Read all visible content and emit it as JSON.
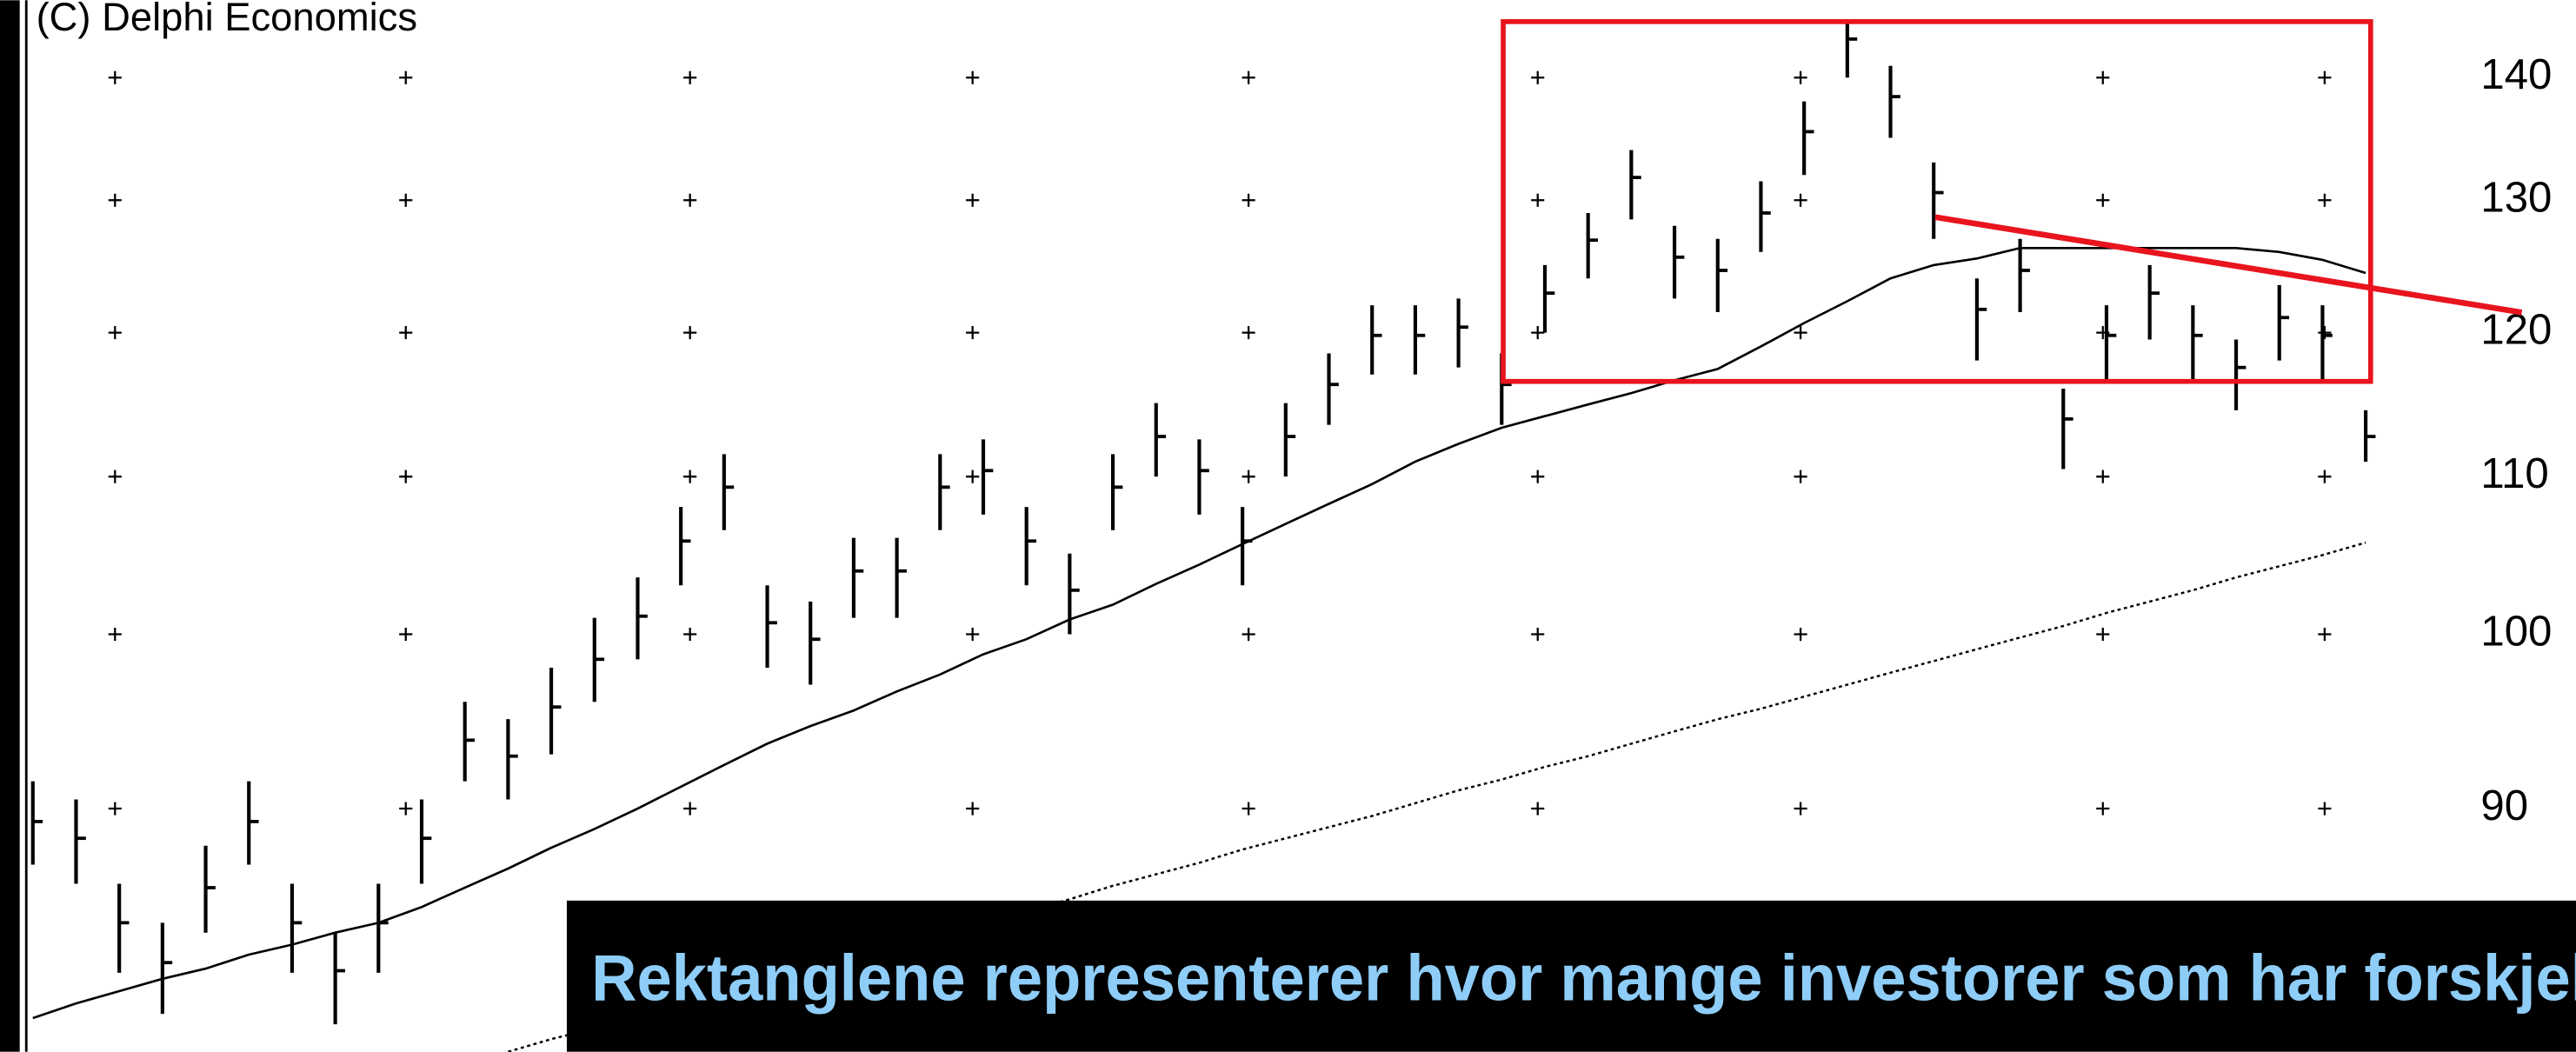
{
  "chart_data": {
    "type": "ohlc",
    "credit": "(C) Delphi Economics",
    "caption": "Rektanglene representerer hvor mange investorer som har forskjellig",
    "log_scale": true,
    "ylim": [
      77.7,
      146.7
    ],
    "yticks": [
      90,
      100,
      110,
      120,
      130,
      140
    ],
    "color": "#000000",
    "high": [
      91.5,
      90.5,
      86,
      84,
      88,
      91.5,
      86,
      83.5,
      86,
      90.5,
      96,
      95,
      98,
      101,
      103.5,
      108,
      111.5,
      103,
      102,
      106,
      106,
      111.5,
      112.5,
      108,
      105,
      111.5,
      115,
      112.5,
      108,
      115,
      118.5,
      122,
      122,
      122.5,
      118.5,
      125,
      129,
      134,
      128,
      127,
      131.5,
      138,
      145,
      141,
      133,
      124,
      127,
      116,
      122,
      125,
      122,
      119.5,
      123.5,
      122,
      114.5
    ],
    "low": [
      87,
      86,
      81.5,
      79.5,
      83.5,
      87,
      81.5,
      79,
      81.5,
      86,
      91.5,
      90.5,
      93,
      96,
      98.5,
      103,
      106.5,
      98,
      97,
      101,
      101,
      106.5,
      107.5,
      103,
      100,
      106.5,
      110,
      107.5,
      103,
      110,
      113.5,
      117,
      117,
      117.5,
      113.5,
      120,
      124,
      128.5,
      122.5,
      121.5,
      126,
      132,
      140,
      135,
      127,
      118,
      121.5,
      110.5,
      116.5,
      119.5,
      116.5,
      114.5,
      118,
      116.5,
      111
    ],
    "close": [
      89.3,
      88.4,
      84,
      82,
      85.8,
      89.3,
      84,
      81.6,
      84,
      88.4,
      93.8,
      92.9,
      95.7,
      98.5,
      101.1,
      105.8,
      109.3,
      100.7,
      99.7,
      103.9,
      103.9,
      109.3,
      110.4,
      105.8,
      102.7,
      109.3,
      112.7,
      110.4,
      105.8,
      112.7,
      116.3,
      119.8,
      119.8,
      120.4,
      116.3,
      122.9,
      126.9,
      131.8,
      125.6,
      124.6,
      129,
      135.5,
      143.3,
      138.4,
      130.6,
      121.7,
      124.6,
      113.9,
      119.8,
      122.9,
      119.8,
      117.5,
      121.1,
      119.8,
      112.7
    ],
    "averages": [
      {
        "style": "solid",
        "values": [
          79.3,
          80.0,
          80.6,
          81.2,
          81.7,
          82.4,
          82.9,
          83.5,
          84.0,
          84.8,
          85.8,
          86.8,
          87.9,
          88.9,
          90.0,
          91.2,
          92.4,
          93.6,
          94.6,
          95.5,
          96.6,
          97.6,
          98.8,
          99.7,
          100.9,
          101.8,
          103.1,
          104.3,
          105.6,
          106.9,
          108.2,
          109.5,
          111.0,
          112.2,
          113.3,
          114.1,
          114.9,
          115.7,
          116.6,
          117.4,
          119.0,
          120.7,
          122.3,
          124.0,
          125.0,
          125.5,
          126.3,
          126.3,
          126.3,
          126.3,
          126.3,
          126.3,
          126.0,
          125.4,
          124.4
        ]
      },
      {
        "style": "dotted",
        "values": [
          null,
          null,
          null,
          null,
          null,
          null,
          null,
          null,
          null,
          null,
          null,
          77.7,
          78.3,
          78.8,
          79.4,
          80.0,
          80.6,
          81.2,
          81.7,
          82.3,
          82.9,
          83.5,
          84.0,
          84.6,
          85.2,
          85.9,
          86.5,
          87.1,
          87.8,
          88.4,
          89.0,
          89.6,
          90.3,
          91.0,
          91.6,
          92.3,
          92.9,
          93.6,
          94.3,
          95.0,
          95.6,
          96.3,
          97.0,
          97.7,
          98.4,
          99.1,
          99.8,
          100.5,
          101.3,
          102.0,
          102.7,
          103.5,
          104.2,
          104.9,
          105.7
        ]
      }
    ]
  }
}
